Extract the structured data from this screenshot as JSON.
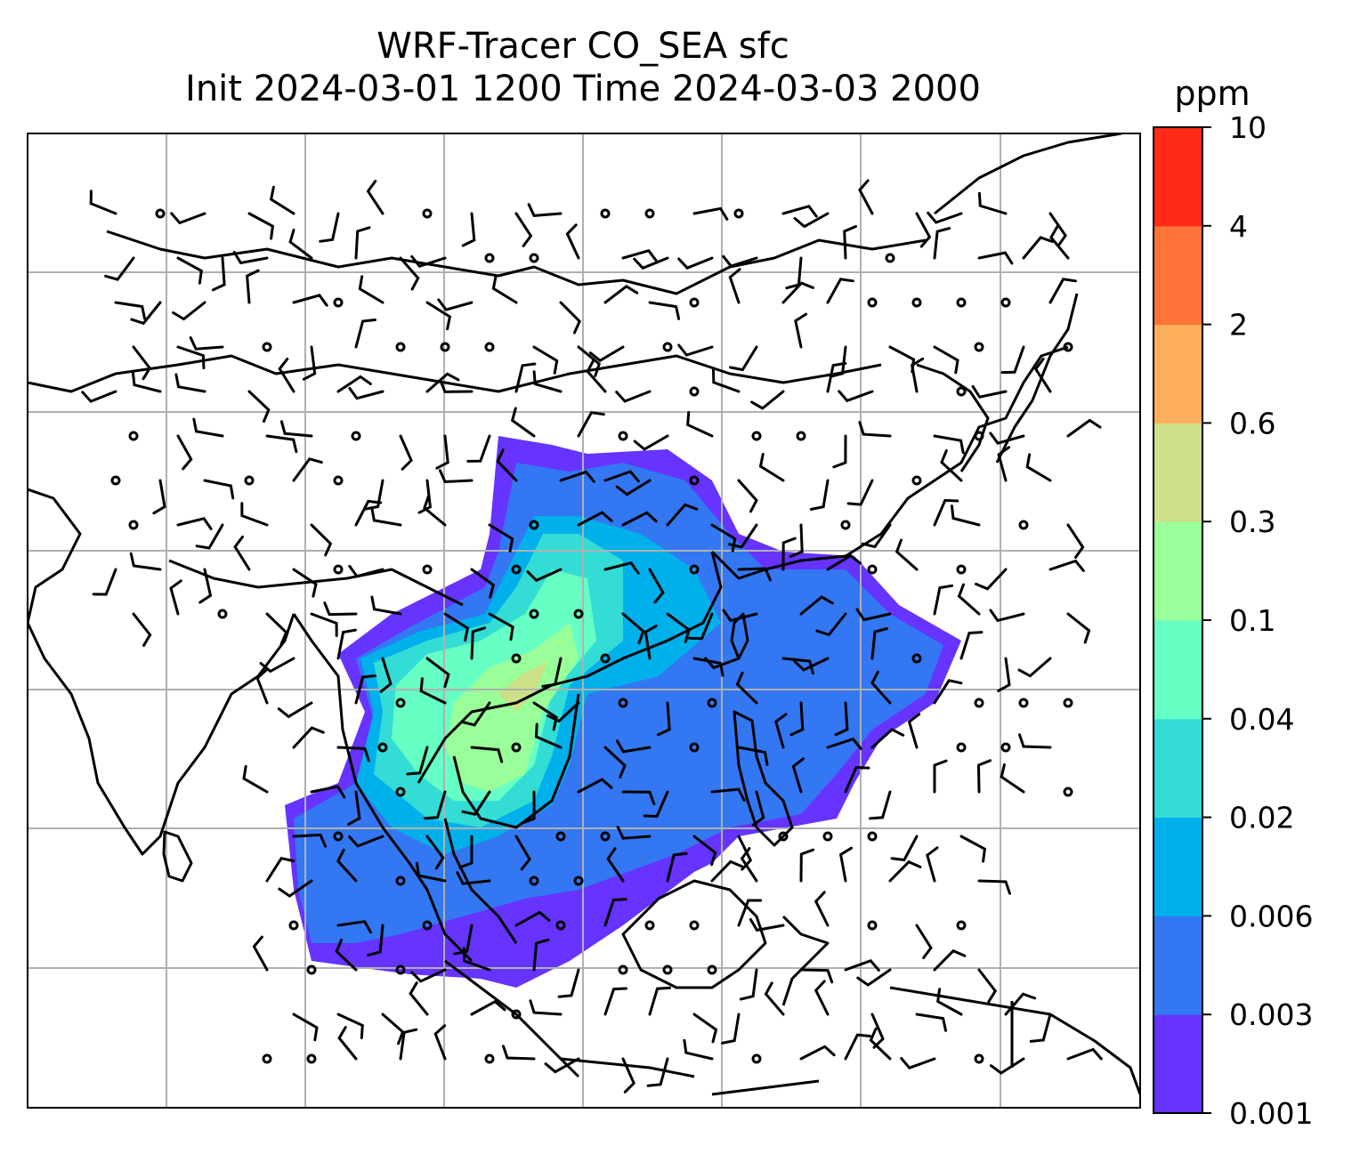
{
  "chart_data": {
    "type": "heatmap",
    "title": "WRF-Tracer CO_SEA sfc",
    "subtitle": "Init 2024-03-01 1200 Time 2024-03-03 2000",
    "colorbar_label": "ppm",
    "colorbar_levels": [
      "0.001",
      "0.003",
      "0.006",
      "0.02",
      "0.04",
      "0.1",
      "0.3",
      "0.6",
      "2",
      "4",
      "10"
    ],
    "colorbar_colors": [
      "#6633ff",
      "#3377f2",
      "#00b0ea",
      "#33ddd6",
      "#66ffc4",
      "#99ff99",
      "#cce088",
      "#ffae5d",
      "#ff7338",
      "#ff2a18"
    ],
    "grid": true,
    "wind_barbs": true,
    "coastlines": true
  }
}
